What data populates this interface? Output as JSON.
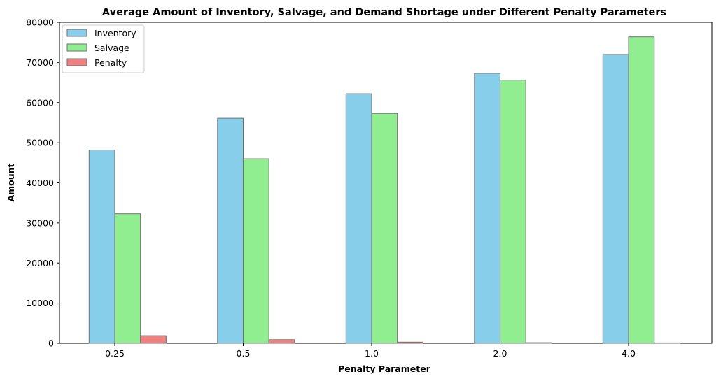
{
  "chart_data": {
    "type": "bar",
    "title": "Average Amount of Inventory, Salvage, and Demand Shortage under Different Penalty Parameters",
    "xlabel": "Penalty Parameter",
    "ylabel": "Amount",
    "categories": [
      "0.25",
      "0.5",
      "1.0",
      "2.0",
      "4.0"
    ],
    "ylim": [
      0,
      80000
    ],
    "yticks": [
      "0",
      "10000",
      "20000",
      "30000",
      "40000",
      "50000",
      "60000",
      "70000",
      "80000"
    ],
    "grid": false,
    "legend_position": "top-left",
    "series": [
      {
        "name": "Inventory",
        "color": "#87CEEB",
        "values": [
          48200,
          56100,
          62200,
          67300,
          72000
        ]
      },
      {
        "name": "Salvage",
        "color": "#90EE90",
        "values": [
          32300,
          46000,
          57300,
          65600,
          76400
        ]
      },
      {
        "name": "Penalty",
        "color": "#F08080",
        "values": [
          1900,
          900,
          300,
          150,
          100
        ]
      }
    ]
  }
}
